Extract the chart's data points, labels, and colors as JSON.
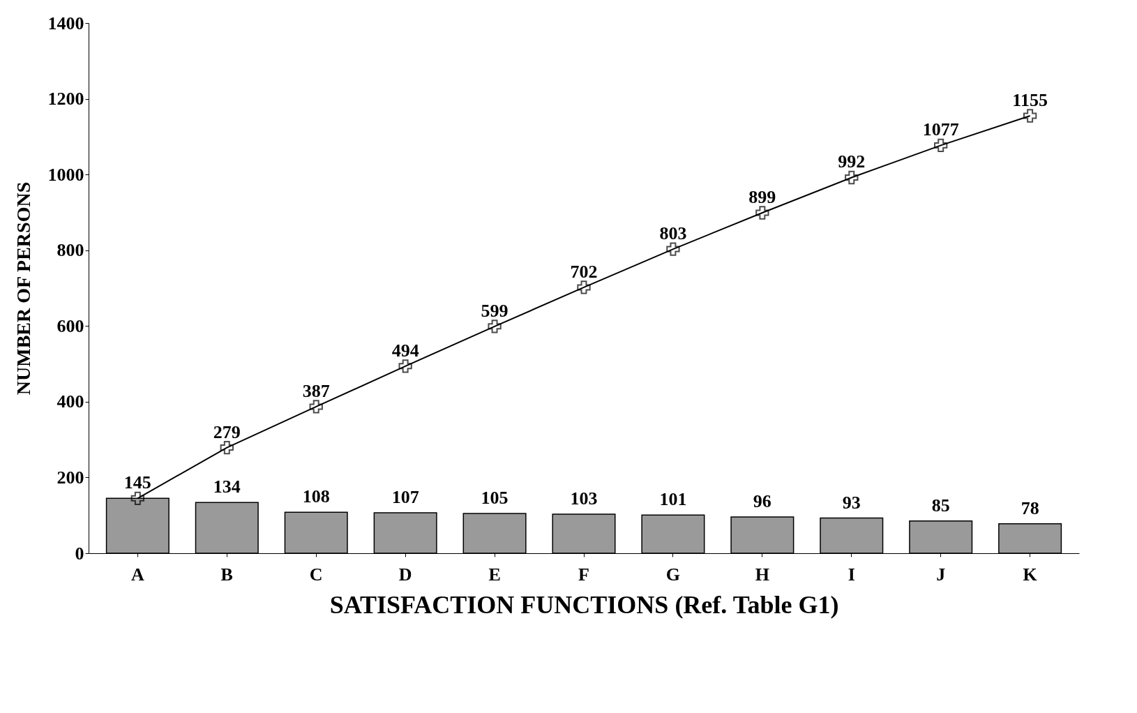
{
  "chart_data": {
    "type": "bar",
    "xlabel": "SATISFACTION FUNCTIONS (Ref. Table G1)",
    "ylabel": "NUMBER OF PERSONS",
    "categories": [
      "A",
      "B",
      "C",
      "D",
      "E",
      "F",
      "G",
      "H",
      "I",
      "J",
      "K"
    ],
    "ylim": [
      0,
      1400
    ],
    "yticks": [
      0,
      200,
      400,
      600,
      800,
      1000,
      1200,
      1400
    ],
    "data_labels": true,
    "marker": "cross",
    "line_style": "solid",
    "series": [
      {
        "color": "#9a9a9a",
        "values": [
          145,
          134,
          108,
          107,
          105,
          103,
          101,
          96,
          93,
          85,
          78
        ]
      },
      {
        "type": "line",
        "color": "#000000",
        "values": [
          145,
          279,
          387,
          494,
          599,
          702,
          803,
          899,
          992,
          1077,
          1155
        ],
        "value_labels": [
          null,
          "279",
          "387",
          "494",
          "599",
          "702",
          "803",
          "899",
          "992",
          "1077",
          "1155"
        ]
      }
    ]
  }
}
